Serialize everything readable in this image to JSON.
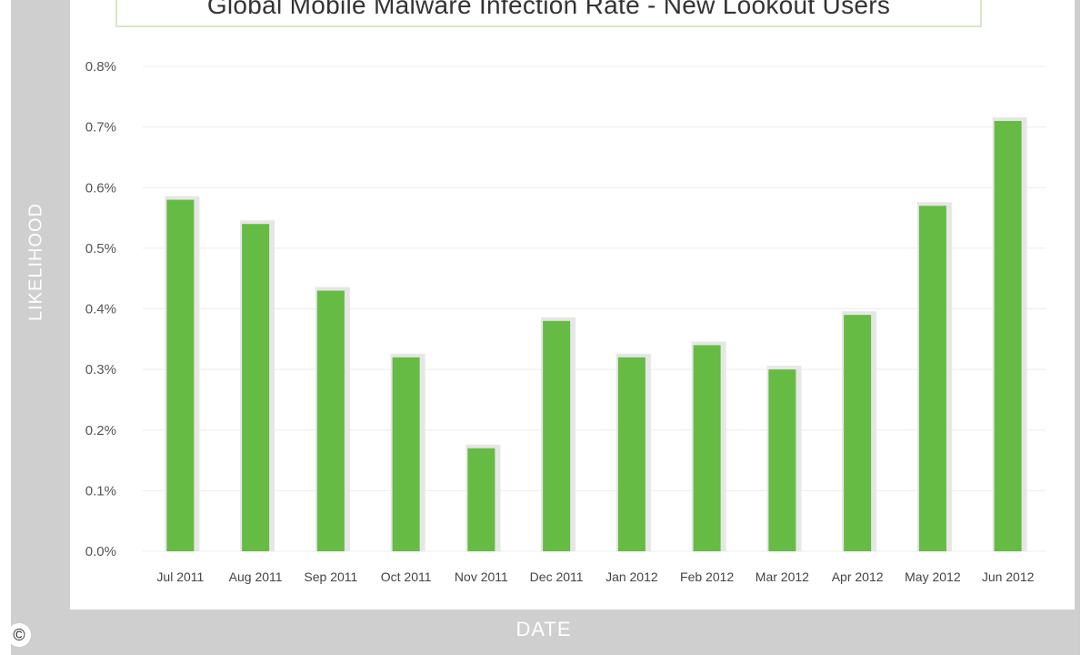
{
  "chart_data": {
    "type": "bar",
    "title": "Global Mobile Malware Infection Rate - New Lookout Users",
    "xlabel": "DATE",
    "ylabel": "LIKELIHOOD",
    "categories": [
      "Jul 2011",
      "Aug 2011",
      "Sep 2011",
      "Oct 2011",
      "Nov 2011",
      "Dec 2011",
      "Jan 2012",
      "Feb 2012",
      "Mar 2012",
      "Apr 2012",
      "May 2012",
      "Jun 2012"
    ],
    "values": [
      0.58,
      0.54,
      0.43,
      0.32,
      0.17,
      0.38,
      0.32,
      0.34,
      0.3,
      0.39,
      0.57,
      0.71
    ],
    "ylim": [
      0,
      0.8
    ],
    "yticks": [
      0.0,
      0.1,
      0.2,
      0.3,
      0.4,
      0.5,
      0.6,
      0.7,
      0.8
    ],
    "ytick_labels": [
      "0.0%",
      "0.1%",
      "0.2%",
      "0.3%",
      "0.4%",
      "0.5%",
      "0.6%",
      "0.7%",
      "0.8%"
    ],
    "grid": true,
    "bar_color": "#66bb44"
  },
  "footer": {
    "copyright_symbol": "©"
  }
}
